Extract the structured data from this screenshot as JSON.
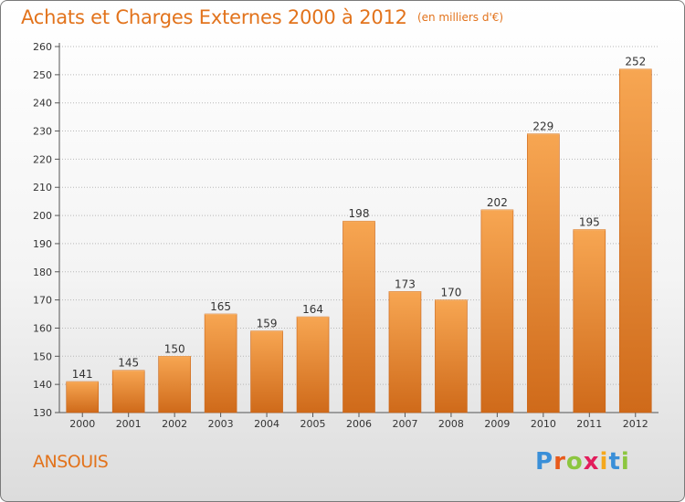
{
  "header": {
    "title": "Achats et Charges Externes 2000 à 2012",
    "subtitle": "(en milliers d'€)"
  },
  "footer": {
    "commune": "ANSOUIS",
    "brand": "Proxiti",
    "brand_colors": [
      "#3a8fd8",
      "#e85a1b",
      "#8cc63f",
      "#e21d5c",
      "#f5a81c",
      "#3a8fd8",
      "#8cc63f"
    ]
  },
  "colors": {
    "bar_light": "#f7a652",
    "bar_dark": "#cf6a1a",
    "bar_edge": "#c96316",
    "text_accent": "#e2731c"
  },
  "chart_data": {
    "type": "bar",
    "title": "Achats et Charges Externes 2000 à 2012",
    "subtitle": "(en milliers d'€)",
    "xlabel": "",
    "ylabel": "",
    "categories": [
      "2000",
      "2001",
      "2002",
      "2003",
      "2004",
      "2005",
      "2006",
      "2007",
      "2008",
      "2009",
      "2010",
      "2011",
      "2012"
    ],
    "values": [
      141,
      145,
      150,
      165,
      159,
      164,
      198,
      173,
      170,
      202,
      229,
      195,
      252
    ],
    "ylim": [
      130,
      260
    ],
    "yticks": [
      130,
      140,
      150,
      160,
      170,
      180,
      190,
      200,
      210,
      220,
      230,
      240,
      250,
      260
    ],
    "grid": "horizontal-dotted",
    "legend": "none",
    "data_labels": true
  }
}
